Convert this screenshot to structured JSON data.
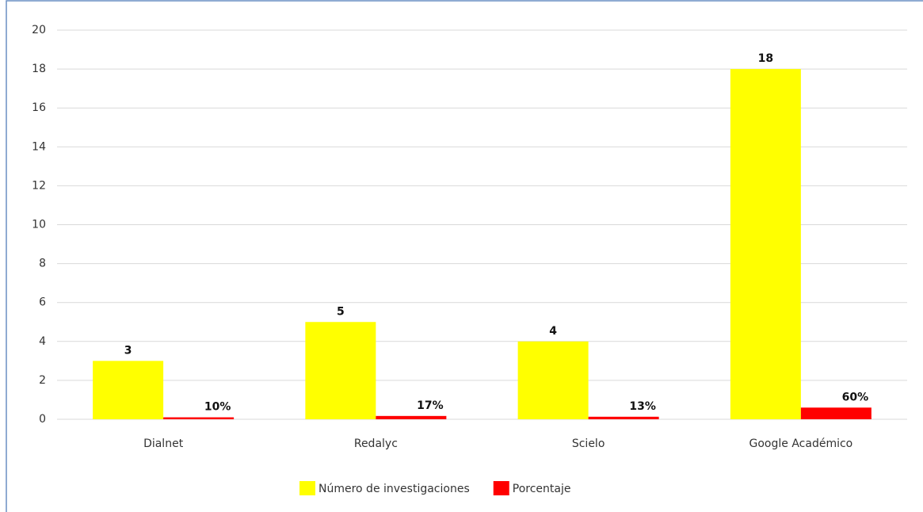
{
  "chart_data": {
    "type": "bar",
    "categories": [
      "Dialnet",
      "Redalyc",
      "Scielo",
      "Google Académico"
    ],
    "series": [
      {
        "name": "Número de investigaciones",
        "color": "#ffff00",
        "values": [
          3,
          5,
          4,
          18
        ]
      },
      {
        "name": "Porcentaje",
        "color": "#ff0000",
        "values": [
          0.1,
          0.17,
          0.13,
          0.6
        ],
        "value_labels": [
          "10%",
          "17%",
          "13%",
          "60%"
        ]
      }
    ],
    "ylim": [
      0,
      20
    ],
    "yticks": [
      0,
      2,
      4,
      6,
      8,
      10,
      12,
      14,
      16,
      18,
      20
    ],
    "grid": true,
    "legend": "bottom"
  }
}
